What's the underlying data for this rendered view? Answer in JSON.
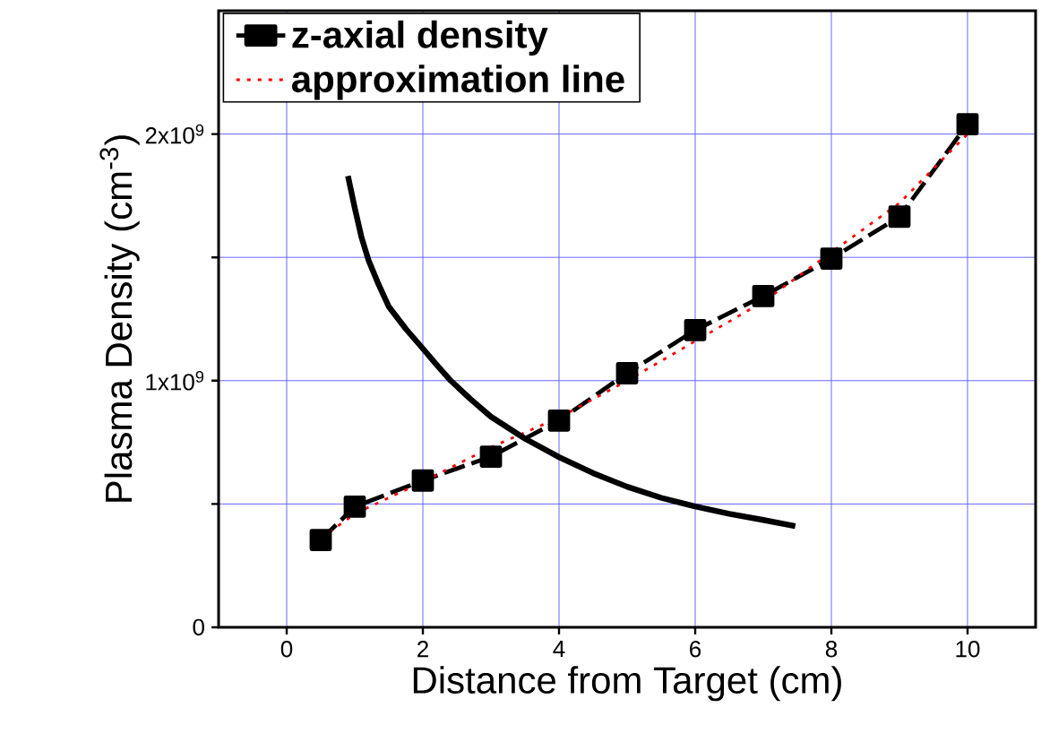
{
  "chart_data": {
    "type": "line",
    "xlabel": "Distance from Target (cm)",
    "ylabel": "Plasma Density (cm$^{-3}$)",
    "xlim": [
      -1,
      11
    ],
    "xticks": [
      0,
      2,
      4,
      6,
      8,
      10
    ],
    "ylim": [
      0,
      2500000000
    ],
    "yticks": [
      {
        "value": 0,
        "label": "0"
      },
      {
        "value": 500000000,
        "label": null
      },
      {
        "value": 1000000000,
        "label": "1x10$^{9}$"
      },
      {
        "value": 1500000000,
        "label": null
      },
      {
        "value": 2000000000,
        "label": "2x10$^{9}$"
      }
    ],
    "grid": true,
    "legend": "top left",
    "series": [
      {
        "name": "z-axial density",
        "color": "#000000",
        "marker": "square",
        "line_style": "dashed",
        "x": [
          0.5,
          1,
          2,
          3,
          4,
          5,
          6,
          7,
          8,
          9,
          10
        ],
        "values": [
          354000000,
          489000000,
          595000000,
          692000000,
          838000000,
          1030000000,
          1205000000,
          1343000000,
          1495000000,
          1665000000,
          2040000000
        ]
      },
      {
        "name": "approximation line",
        "color": "#ff0000",
        "marker": "none",
        "line_style": "dotted",
        "x": [
          0.5,
          1,
          2,
          3,
          4,
          5,
          6,
          7,
          8,
          9,
          10
        ],
        "values": [
          360000000,
          460000000,
          590000000,
          730000000,
          850000000,
          1000000000,
          1160000000,
          1320000000,
          1520000000,
          1720000000,
          2000000000
        ]
      },
      {
        "color": "#000000",
        "marker": "none",
        "line_style": "solid",
        "x": [
          0.9,
          1.0,
          1.1,
          1.2,
          1.35,
          1.5,
          1.75,
          2,
          2.2,
          2.41,
          2.7,
          3,
          3.5,
          4,
          4.5,
          5,
          5.5,
          6,
          6.5,
          7,
          7.47
        ],
        "values": [
          1830000000,
          1700000000,
          1580000000,
          1490000000,
          1390000000,
          1300000000,
          1210000000,
          1130000000,
          1065000000,
          1000000000,
          925000000,
          854000000,
          765000000,
          690000000,
          625000000,
          570000000,
          525000000,
          490000000,
          460000000,
          435000000,
          410000000
        ]
      }
    ]
  }
}
